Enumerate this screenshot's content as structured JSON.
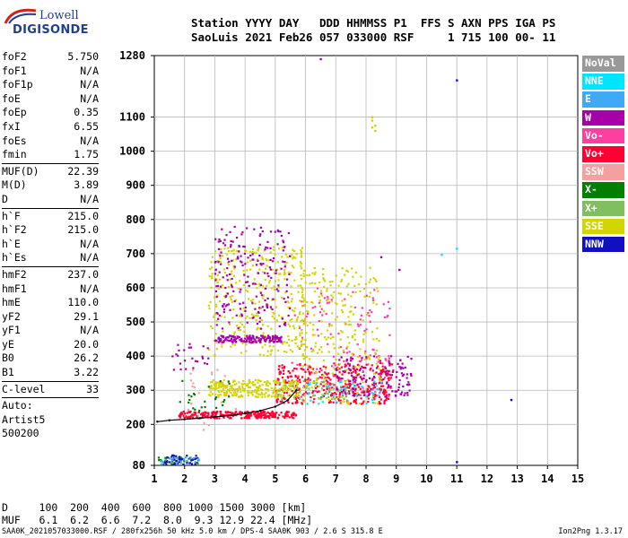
{
  "logo": {
    "line1": "Lowell",
    "line2": "DIGISONDE"
  },
  "header": {
    "line1": "Station YYYY DAY   DDD HHMMSS P1  FFS S AXN PPS IGA PS",
    "line2": "SaoLuis 2021 Feb26 057 033000 RSF     1 715 100 00- 11"
  },
  "params": {
    "group1": [
      {
        "name": "foF2",
        "value": "5.750"
      },
      {
        "name": "foF1",
        "value": "N/A"
      },
      {
        "name": "foF1p",
        "value": "N/A"
      },
      {
        "name": "foE",
        "value": "N/A"
      },
      {
        "name": "foEp",
        "value": "0.35"
      },
      {
        "name": "fxI",
        "value": "6.55"
      },
      {
        "name": "foEs",
        "value": "N/A"
      },
      {
        "name": "fmin",
        "value": "1.75"
      }
    ],
    "group2": [
      {
        "name": "MUF(D)",
        "value": "22.39"
      },
      {
        "name": "M(D)",
        "value": "3.89"
      },
      {
        "name": "D",
        "value": "N/A"
      }
    ],
    "group3": [
      {
        "name": "h`F",
        "value": "215.0"
      },
      {
        "name": "h`F2",
        "value": "215.0"
      },
      {
        "name": "h`E",
        "value": "N/A"
      },
      {
        "name": "h`Es",
        "value": "N/A"
      }
    ],
    "group4": [
      {
        "name": "hmF2",
        "value": "237.0"
      },
      {
        "name": "hmF1",
        "value": "N/A"
      },
      {
        "name": "hmE",
        "value": "110.0"
      },
      {
        "name": "yF2",
        "value": "29.1"
      },
      {
        "name": "yF1",
        "value": "N/A"
      },
      {
        "name": "yE",
        "value": "20.0"
      },
      {
        "name": "B0",
        "value": "26.2"
      },
      {
        "name": "B1",
        "value": "3.22"
      }
    ],
    "group5": [
      {
        "name": "C-level",
        "value": "33"
      }
    ],
    "auto": [
      "Auto:",
      "Artist5",
      "500200"
    ]
  },
  "legend": [
    {
      "label": "NoVal",
      "color": "#999999"
    },
    {
      "label": "NNE",
      "color": "#00e5ff"
    },
    {
      "label": "E",
      "color": "#3fa9f5"
    },
    {
      "label": "W",
      "color": "#a800a8"
    },
    {
      "label": "Vo-",
      "color": "#ff3fa0"
    },
    {
      "label": "Vo+",
      "color": "#ff0033"
    },
    {
      "label": "SSW",
      "color": "#f4a0a0"
    },
    {
      "label": "X-",
      "color": "#007f00"
    },
    {
      "label": "X+",
      "color": "#7fbf5f"
    },
    {
      "label": "SSE",
      "color": "#d4d400"
    },
    {
      "label": "NNW",
      "color": "#1010c0"
    }
  ],
  "footer": {
    "line1": "D     100  200  400  600  800 1000 1500 3000 [km]",
    "line2": "MUF   6.1  6.2  6.6  7.2  8.0  9.3 12.9 22.4 [MHz]",
    "note": "SAA0K_2021057033000.RSF / 280fx256h 50 kHz 5.0 km / DPS-4 SAA0K 903 / 2.6 S 315.8 E",
    "version": "Ion2Png 1.3.17"
  },
  "chart_data": {
    "type": "scatter",
    "x_ticks": [
      1,
      2,
      3,
      4,
      5,
      6,
      7,
      8,
      9,
      10,
      11,
      12,
      13,
      14,
      15
    ],
    "y_ticks": [
      80,
      200,
      300,
      400,
      500,
      600,
      700,
      800,
      900,
      1000,
      1100,
      1280
    ],
    "xlim": [
      1,
      15
    ],
    "ylim": [
      80,
      1280
    ],
    "grid": true,
    "trace": {
      "x": [
        1.1,
        1.5,
        2.0,
        2.5,
        3.0,
        3.5,
        4.0,
        4.5,
        5.0,
        5.4,
        5.7
      ],
      "y": [
        208,
        212,
        215,
        218,
        222,
        226,
        232,
        240,
        252,
        270,
        300
      ]
    },
    "bands": [
      {
        "series": "Vo+",
        "xr": [
          1.8,
          5.7
        ],
        "yr": [
          218,
          238
        ],
        "n": 260
      },
      {
        "series": "Vo+",
        "xr": [
          5.0,
          8.9
        ],
        "yr": [
          260,
          380
        ],
        "n": 380
      },
      {
        "series": "Vo-",
        "xr": [
          5.5,
          8.8
        ],
        "yr": [
          280,
          600
        ],
        "n": 140
      },
      {
        "series": "SSE",
        "xr": [
          2.8,
          5.8
        ],
        "yr": [
          280,
          330
        ],
        "n": 260
      },
      {
        "series": "SSE",
        "xr": [
          2.8,
          6.0
        ],
        "yr": [
          400,
          720
        ],
        "n": 360
      },
      {
        "series": "SSE",
        "xr": [
          5.8,
          8.5
        ],
        "yr": [
          260,
          660
        ],
        "n": 260
      },
      {
        "series": "W",
        "xr": [
          3.0,
          5.2
        ],
        "yr": [
          440,
          460
        ],
        "n": 150
      },
      {
        "series": "W",
        "xr": [
          3.0,
          5.5
        ],
        "yr": [
          480,
          780
        ],
        "n": 200
      },
      {
        "series": "W",
        "xr": [
          7.0,
          9.5
        ],
        "yr": [
          280,
          400
        ],
        "n": 140
      },
      {
        "series": "W",
        "xr": [
          1.6,
          3.0
        ],
        "yr": [
          360,
          440
        ],
        "n": 25
      },
      {
        "series": "X-",
        "xr": [
          1.1,
          2.5
        ],
        "yr": [
          82,
          105
        ],
        "n": 35
      },
      {
        "series": "NNW",
        "xr": [
          1.3,
          2.5
        ],
        "yr": [
          82,
          110
        ],
        "n": 40
      },
      {
        "series": "E",
        "xr": [
          1.2,
          2.5
        ],
        "yr": [
          82,
          105
        ],
        "n": 20
      },
      {
        "series": "X+",
        "xr": [
          5.0,
          7.5
        ],
        "yr": [
          270,
          330
        ],
        "n": 50
      },
      {
        "series": "NNE",
        "xr": [
          6.0,
          8.6
        ],
        "yr": [
          260,
          330
        ],
        "n": 40
      },
      {
        "series": "SSW",
        "xr": [
          2.0,
          4.0
        ],
        "yr": [
          180,
          360
        ],
        "n": 25
      },
      {
        "series": "X-",
        "xr": [
          1.8,
          3.5
        ],
        "yr": [
          240,
          330
        ],
        "n": 25
      }
    ],
    "points": [
      {
        "x": 11.0,
        "y": 1208,
        "series": "NNW"
      },
      {
        "x": 11.0,
        "y": 715,
        "series": "NNE"
      },
      {
        "x": 10.5,
        "y": 697,
        "series": "NNE"
      },
      {
        "x": 12.8,
        "y": 272,
        "series": "NNW"
      },
      {
        "x": 11.0,
        "y": 90,
        "series": "NNW"
      },
      {
        "x": 8.2,
        "y": 1100,
        "series": "SSE"
      },
      {
        "x": 8.2,
        "y": 1090,
        "series": "SSE"
      },
      {
        "x": 8.3,
        "y": 1075,
        "series": "SSE"
      },
      {
        "x": 8.2,
        "y": 1070,
        "series": "SSE"
      },
      {
        "x": 8.3,
        "y": 1060,
        "series": "SSE"
      },
      {
        "x": 8.5,
        "y": 690,
        "series": "W"
      },
      {
        "x": 9.1,
        "y": 653,
        "series": "W"
      },
      {
        "x": 6.5,
        "y": 1270,
        "series": "W"
      }
    ]
  }
}
